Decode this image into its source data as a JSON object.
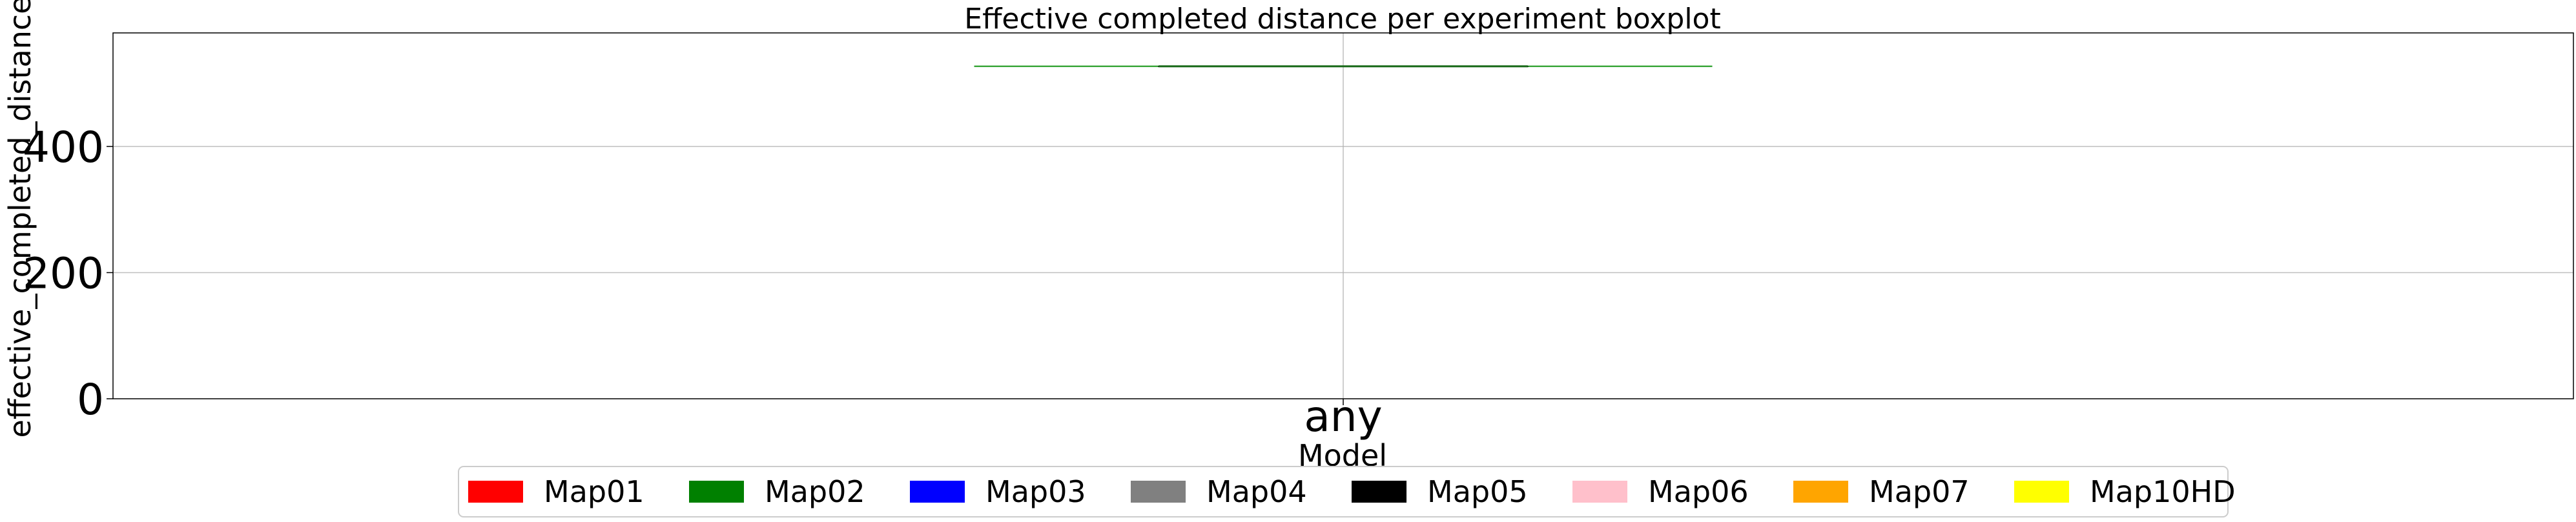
{
  "chart_data": {
    "type": "boxplot",
    "title": "Effective completed distance per experiment boxplot",
    "xlabel": "Model",
    "ylabel": "effective_completed_distance",
    "categories": [
      "any"
    ],
    "ylim": [
      0,
      580
    ],
    "yticks": [
      0,
      200,
      400
    ],
    "grid": true,
    "series": [
      {
        "name": "Map02",
        "category": "any",
        "min": 527,
        "q1": 527,
        "median": 527,
        "q3": 527,
        "max": 527,
        "median_color": "#2ca02c"
      }
    ],
    "legend": {
      "placement": "bottom-center",
      "entries": [
        {
          "label": "Map01",
          "color": "#ff0000"
        },
        {
          "label": "Map02",
          "color": "#008000"
        },
        {
          "label": "Map03",
          "color": "#0000ff"
        },
        {
          "label": "Map04",
          "color": "#808080"
        },
        {
          "label": "Map05",
          "color": "#000000"
        },
        {
          "label": "Map06",
          "color": "#ffc0cb"
        },
        {
          "label": "Map07",
          "color": "#ffa500"
        },
        {
          "label": "Map10HD",
          "color": "#ffff00"
        }
      ]
    }
  }
}
